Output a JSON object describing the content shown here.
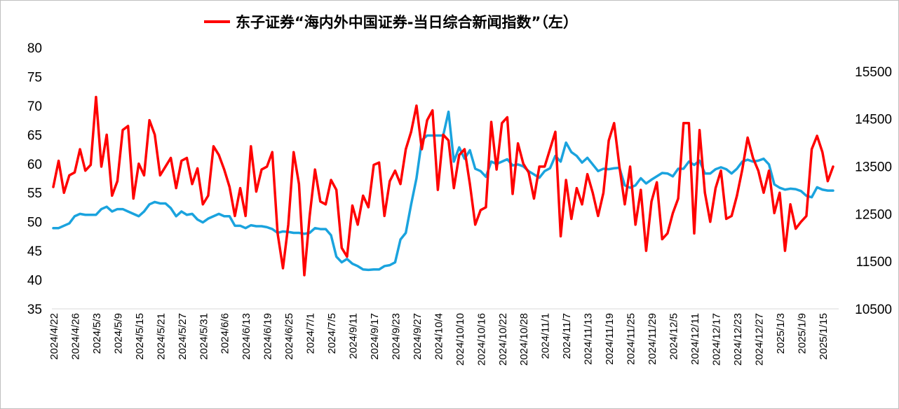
{
  "chart_data": {
    "type": "line",
    "title": "",
    "legend": {
      "placement": "top-center",
      "entries": [
        "东子证券“海内外中国证券-当日综合新闻指数”（左）"
      ]
    },
    "colors": {
      "left_series": "#ff0000",
      "right_series": "#1aa3de",
      "frame": "#bfbfbf"
    },
    "grid": false,
    "y_left": {
      "ticks": [
        35,
        40,
        45,
        50,
        55,
        60,
        65,
        70,
        75,
        80
      ],
      "ylim": [
        35,
        80
      ]
    },
    "y_right": {
      "ticks": [
        10500,
        11500,
        12500,
        13500,
        14500,
        15500
      ],
      "ylim": [
        10500,
        16000
      ]
    },
    "x_tick_labels": [
      "2024/4/22",
      "2024/4/26",
      "2024/5/3",
      "2024/5/9",
      "2024/5/15",
      "2024/5/21",
      "2024/5/27",
      "2024/5/31",
      "2024/6/6",
      "2024/6/13",
      "2024/6/19",
      "2024/6/25",
      "2024/7/1",
      "2024/7/5",
      "2024/9/11",
      "2024/9/17",
      "2024/9/23",
      "2024/9/27",
      "2024/10/4",
      "2024/10/10",
      "2024/10/16",
      "2024/10/22",
      "2024/10/28",
      "2024/11/1",
      "2024/11/7",
      "2024/11/13",
      "2024/11/19",
      "2024/11/25",
      "2024/11/29",
      "2024/12/5",
      "2024/12/11",
      "2024/12/17",
      "2024/12/23",
      "2024/12/27",
      "2025/1/3",
      "2025/1/9",
      "2025/1/15"
    ],
    "points_per_tick": 4,
    "series": [
      {
        "name": "东子证券“海内外中国证券-当日综合新闻指数”（左）",
        "axis": "left",
        "values": [
          56.0,
          60.5,
          55.0,
          58.0,
          58.5,
          62.5,
          58.8,
          59.8,
          71.5,
          59.5,
          65.0,
          54.5,
          57.0,
          65.8,
          66.5,
          54.0,
          60.0,
          58.0,
          67.5,
          65.0,
          58.0,
          59.5,
          61.0,
          55.8,
          60.5,
          61.0,
          56.5,
          59.2,
          53.0,
          54.5,
          63.0,
          61.5,
          59.0,
          56.0,
          51.0,
          55.8,
          51.0,
          63.0,
          55.2,
          59.0,
          59.5,
          62.0,
          48.0,
          42.0,
          49.5,
          62.0,
          56.5,
          40.8,
          51.0,
          59.0,
          53.5,
          53.0,
          57.2,
          55.5,
          45.5,
          44.0,
          52.8,
          49.5,
          54.5,
          52.5,
          59.8,
          60.2,
          51.0,
          57.0,
          58.8,
          56.5,
          62.5,
          65.5,
          70.0,
          62.5,
          67.5,
          69.2,
          55.5,
          65.0,
          64.0,
          55.8,
          61.5,
          62.5,
          56.5,
          49.5,
          52.0,
          52.5,
          67.2,
          59.0,
          67.0,
          68.0,
          54.8,
          63.5,
          60.0,
          58.5,
          54.0,
          59.5,
          59.5,
          62.5,
          65.5,
          47.5,
          57.2,
          50.5,
          55.8,
          53.0,
          58.2,
          55.0,
          51.0,
          55.0,
          64.0,
          67.0,
          59.5,
          53.0,
          59.5,
          49.5,
          55.5,
          45.0,
          53.5,
          56.8,
          47.0,
          48.0,
          51.5,
          54.0,
          67.0,
          67.0,
          48.0,
          65.8,
          55.0,
          50.0,
          55.8,
          58.8,
          50.5,
          51.0,
          54.5,
          59.0,
          64.5,
          61.0,
          58.8,
          55.0,
          58.8,
          51.5,
          55.0,
          45.0,
          53.0,
          48.8,
          50.0,
          51.0,
          62.5,
          64.8,
          62.0,
          57.0,
          59.5
        ]
      },
      {
        "name": "",
        "axis": "right",
        "values": [
          12200,
          12200,
          12250,
          12300,
          12450,
          12500,
          12480,
          12480,
          12480,
          12600,
          12650,
          12550,
          12600,
          12600,
          12550,
          12500,
          12450,
          12550,
          12700,
          12750,
          12720,
          12720,
          12620,
          12450,
          12550,
          12480,
          12500,
          12380,
          12320,
          12400,
          12450,
          12500,
          12450,
          12450,
          12250,
          12250,
          12200,
          12260,
          12240,
          12240,
          12220,
          12180,
          12100,
          12130,
          12120,
          12100,
          12100,
          12080,
          12100,
          12200,
          12180,
          12180,
          12050,
          11600,
          11480,
          11550,
          11450,
          11400,
          11330,
          11320,
          11330,
          11330,
          11400,
          11420,
          11480,
          11960,
          12100,
          12700,
          13250,
          14050,
          14150,
          14150,
          14150,
          14150,
          14650,
          13600,
          13900,
          13660,
          13840,
          13450,
          13400,
          13280,
          13600,
          13550,
          13600,
          13650,
          13520,
          13540,
          13500,
          13400,
          13330,
          13260,
          13400,
          13460,
          13720,
          13600,
          14000,
          13800,
          13720,
          13580,
          13680,
          13540,
          13400,
          13450,
          13440,
          13460,
          13470,
          13100,
          13050,
          13100,
          13250,
          13140,
          13220,
          13290,
          13360,
          13350,
          13290,
          13450,
          13450,
          13600,
          13530,
          13620,
          13350,
          13350,
          13440,
          13480,
          13440,
          13350,
          13450,
          13600,
          13640,
          13600,
          13620,
          13660,
          13540,
          13120,
          13050,
          13010,
          13030,
          13020,
          12980,
          12880,
          12850,
          13060,
          13010,
          12990,
          12990
        ]
      }
    ]
  }
}
